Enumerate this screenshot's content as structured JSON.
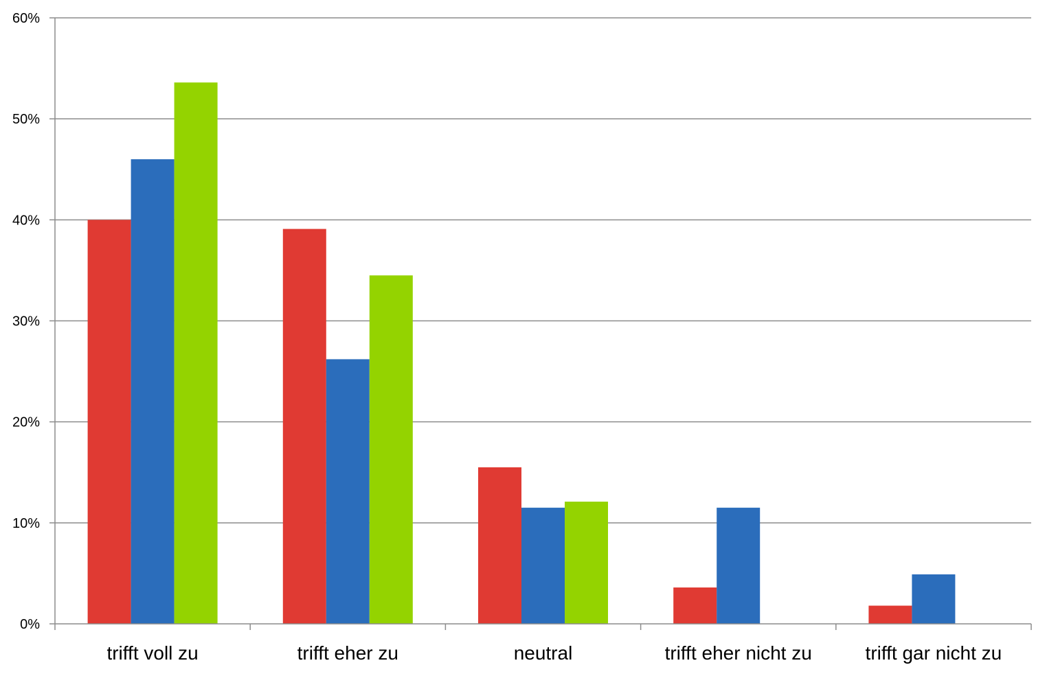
{
  "chart_data": {
    "type": "bar",
    "title": "",
    "xlabel": "",
    "ylabel": "",
    "categories": [
      "trifft voll zu",
      "trifft eher zu",
      "neutral",
      "trifft eher nicht zu",
      "trifft gar nicht zu"
    ],
    "series": [
      {
        "color": "#e03a33",
        "values": [
          40.0,
          39.1,
          15.5,
          3.6,
          1.8
        ]
      },
      {
        "color": "#2b6dbb",
        "values": [
          46.0,
          26.2,
          11.5,
          11.5,
          4.9
        ]
      },
      {
        "color": "#94d300",
        "values": [
          53.6,
          34.5,
          12.1,
          0,
          0
        ]
      }
    ],
    "ylim": [
      0,
      60
    ],
    "yticks": [
      0,
      10,
      20,
      30,
      40,
      50,
      60
    ],
    "ytick_labels": [
      "0%",
      "10%",
      "20%",
      "30%",
      "40%",
      "50%",
      "60%"
    ],
    "grid": true,
    "legend": "none"
  }
}
